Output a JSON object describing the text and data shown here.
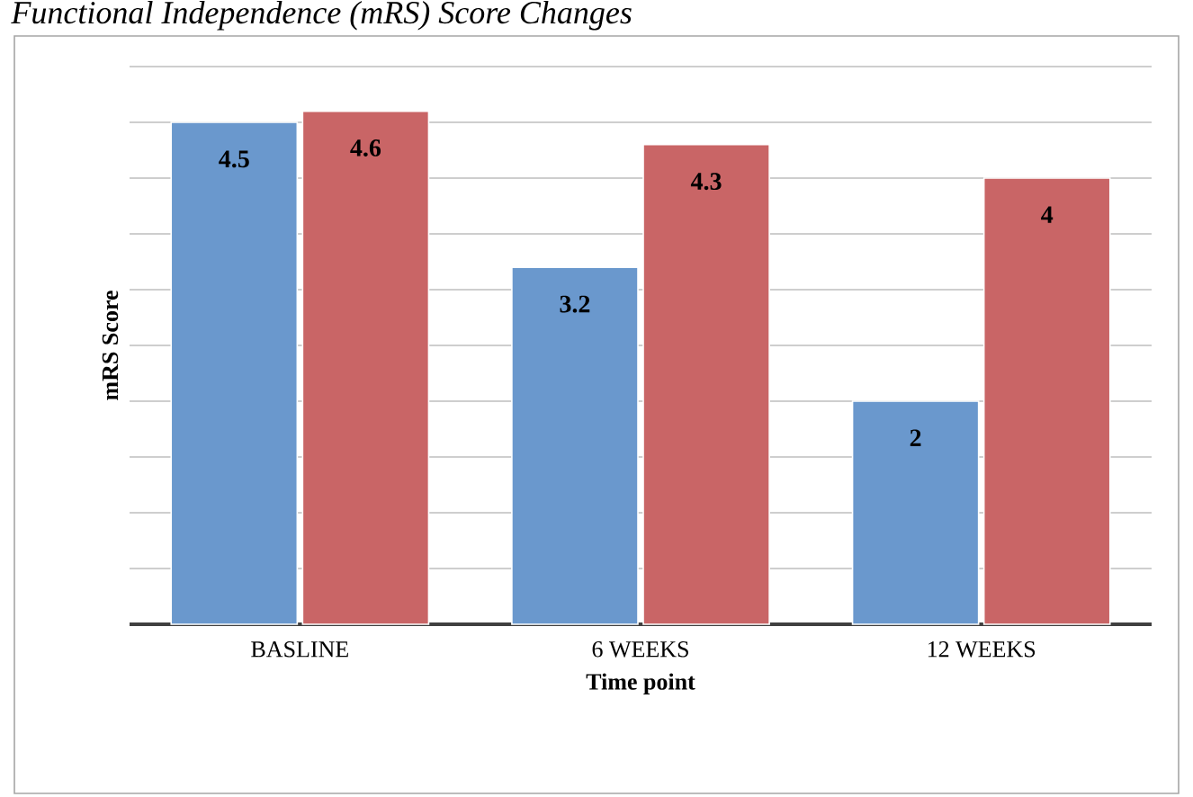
{
  "chart_data": {
    "type": "bar",
    "title": "Functional Independence (mRS) Score Changes",
    "xlabel": "Time point",
    "ylabel": "mRS Score",
    "categories": [
      "BASLINE",
      "6 WEEKS",
      "12 WEEKS"
    ],
    "series": [
      {
        "color": "#6a98cd",
        "values": [
          4.5,
          3.2,
          2
        ]
      },
      {
        "color": "#c96566",
        "values": [
          4.6,
          4.3,
          4
        ]
      }
    ],
    "ylim": [
      0,
      5
    ],
    "yticks": [
      {
        "value": 0,
        "label": null
      },
      {
        "value": 0.5,
        "label": null
      },
      {
        "value": 1,
        "label": null
      },
      {
        "value": 1.5,
        "label": null
      },
      {
        "value": 2,
        "label": null
      },
      {
        "value": 2.5,
        "label": null
      },
      {
        "value": 3,
        "label": null
      },
      {
        "value": 3.5,
        "label": null
      },
      {
        "value": 4,
        "label": null
      },
      {
        "value": 4.5,
        "label": null
      },
      {
        "value": 5,
        "label": null
      }
    ],
    "tick_labels": "x",
    "grid": "y",
    "data_labels": true
  }
}
